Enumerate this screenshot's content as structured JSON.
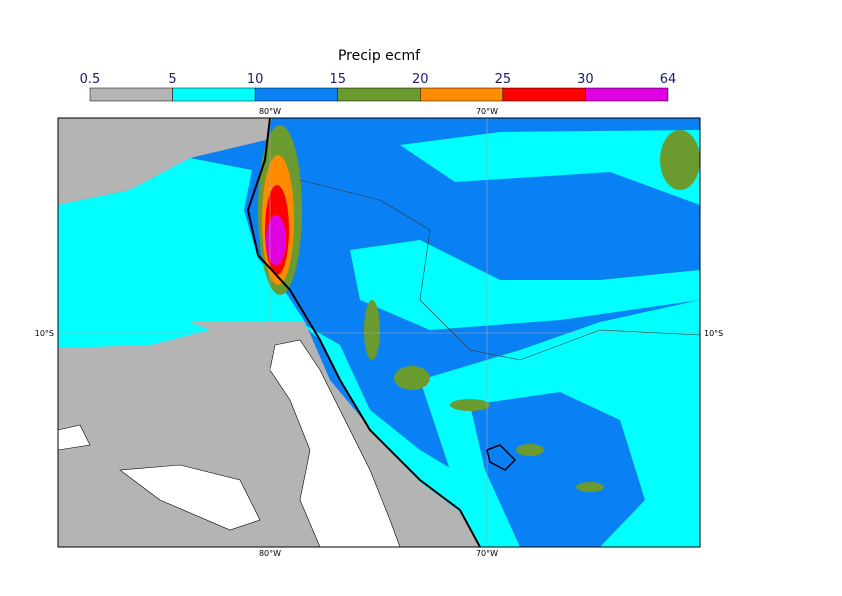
{
  "title": "Precip ecmf",
  "colorbar": {
    "ticks": [
      0.5,
      5,
      10,
      15,
      20,
      25,
      30,
      64
    ],
    "colors": [
      "#b4b4b4",
      "#00ffff",
      "#0a80f5",
      "#6b9a2e",
      "#ff8c00",
      "#ff0000",
      "#e000e0"
    ]
  },
  "lon_labels": [
    "80°W",
    "70°W"
  ],
  "lat_labels": [
    "10°S"
  ]
}
